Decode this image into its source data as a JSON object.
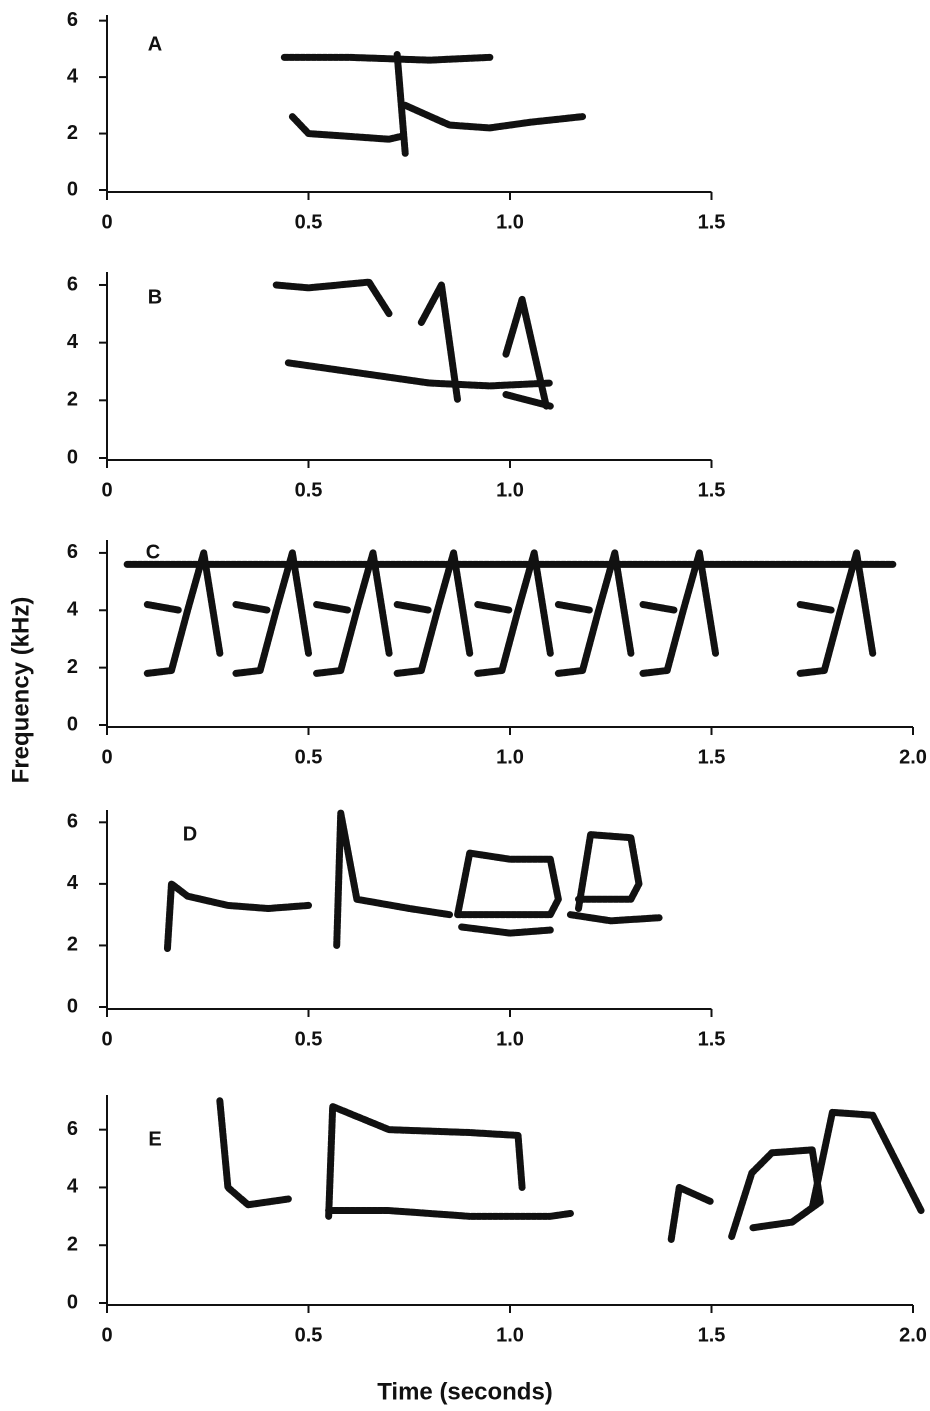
{
  "y_label": "Frequency (kHz)",
  "x_label": "Time (seconds)",
  "chart_data": [
    {
      "type": "line",
      "panel": "A",
      "color": "#111111",
      "xlim": [
        0,
        1.5
      ],
      "ylim": [
        0,
        6.2
      ],
      "xticks": [
        0,
        0.5,
        {
          "value": 1,
          "label": "1.0"
        },
        1.5
      ],
      "yticks": [
        0,
        2,
        4,
        6
      ],
      "traces": [
        {
          "x": [
            0.46,
            0.5,
            0.6,
            0.7,
            0.73
          ],
          "y": [
            2.6,
            2.0,
            1.9,
            1.8,
            1.9
          ]
        },
        {
          "x": [
            0.72,
            0.74
          ],
          "y": [
            4.8,
            1.3
          ]
        },
        {
          "x": [
            0.74,
            0.85,
            0.95,
            1.05,
            1.18
          ],
          "y": [
            3.0,
            2.3,
            2.2,
            2.4,
            2.6
          ]
        },
        {
          "x": [
            0.44,
            0.6,
            0.8,
            0.95
          ],
          "y": [
            4.7,
            4.7,
            4.6,
            4.7
          ]
        }
      ]
    },
    {
      "type": "line",
      "panel": "B",
      "color": "#111111",
      "xlim": [
        0,
        1.5
      ],
      "ylim": [
        0,
        6.45
      ],
      "xticks": [
        0,
        0.5,
        {
          "value": 1,
          "label": "1.0"
        },
        1.5
      ],
      "yticks": [
        0,
        2,
        4,
        6
      ],
      "traces": [
        {
          "x": [
            0.45,
            0.6,
            0.8,
            0.95,
            1.1
          ],
          "y": [
            3.3,
            3.0,
            2.6,
            2.5,
            2.6
          ]
        },
        {
          "x": [
            0.42,
            0.5,
            0.65,
            0.7
          ],
          "y": [
            6.0,
            5.9,
            6.1,
            5.0
          ]
        },
        {
          "x": [
            0.78,
            0.83,
            0.87
          ],
          "y": [
            4.7,
            6.0,
            2.0
          ]
        },
        {
          "x": [
            0.99,
            1.03,
            1.09
          ],
          "y": [
            3.6,
            5.5,
            1.8
          ]
        },
        {
          "x": [
            0.99,
            1.1
          ],
          "y": [
            2.2,
            1.8
          ]
        }
      ]
    },
    {
      "type": "line",
      "panel": "C",
      "color": "#111111",
      "xlim": [
        0,
        2
      ],
      "ylim": [
        0,
        6.45
      ],
      "xticks": [
        0,
        0.5,
        {
          "value": 1,
          "label": "1.0"
        },
        1.5,
        {
          "value": 2,
          "label": "2.0"
        }
      ],
      "yticks": [
        0,
        2,
        4,
        6
      ],
      "traces": [
        {
          "x": [
            0.05,
            1.95
          ],
          "y": [
            5.6,
            5.6
          ]
        },
        {
          "x": [
            0.1,
            0.16,
            0.2,
            0.24,
            0.28
          ],
          "y": [
            1.8,
            1.9,
            4.0,
            6.0,
            2.5
          ]
        },
        {
          "x": [
            0.32,
            0.38,
            0.42,
            0.46,
            0.5
          ],
          "y": [
            1.8,
            1.9,
            4.0,
            6.0,
            2.5
          ]
        },
        {
          "x": [
            0.52,
            0.58,
            0.62,
            0.66,
            0.7
          ],
          "y": [
            1.8,
            1.9,
            4.0,
            6.0,
            2.5
          ]
        },
        {
          "x": [
            0.72,
            0.78,
            0.82,
            0.86,
            0.9
          ],
          "y": [
            1.8,
            1.9,
            4.0,
            6.0,
            2.5
          ]
        },
        {
          "x": [
            0.92,
            0.98,
            1.02,
            1.06,
            1.1
          ],
          "y": [
            1.8,
            1.9,
            4.0,
            6.0,
            2.5
          ]
        },
        {
          "x": [
            1.12,
            1.18,
            1.22,
            1.26,
            1.3
          ],
          "y": [
            1.8,
            1.9,
            4.0,
            6.0,
            2.5
          ]
        },
        {
          "x": [
            1.33,
            1.39,
            1.43,
            1.47,
            1.51
          ],
          "y": [
            1.8,
            1.9,
            4.0,
            6.0,
            2.5
          ]
        },
        {
          "x": [
            1.72,
            1.78,
            1.82,
            1.86,
            1.9
          ],
          "y": [
            1.8,
            1.9,
            4.0,
            6.0,
            2.5
          ]
        },
        {
          "x": [
            0.1,
            0.18
          ],
          "y": [
            4.2,
            4.0
          ]
        },
        {
          "x": [
            0.32,
            0.4
          ],
          "y": [
            4.2,
            4.0
          ]
        },
        {
          "x": [
            0.52,
            0.6
          ],
          "y": [
            4.2,
            4.0
          ]
        },
        {
          "x": [
            0.72,
            0.8
          ],
          "y": [
            4.2,
            4.0
          ]
        },
        {
          "x": [
            0.92,
            1.0
          ],
          "y": [
            4.2,
            4.0
          ]
        },
        {
          "x": [
            1.12,
            1.2
          ],
          "y": [
            4.2,
            4.0
          ]
        },
        {
          "x": [
            1.33,
            1.41
          ],
          "y": [
            4.2,
            4.0
          ]
        },
        {
          "x": [
            1.72,
            1.8
          ],
          "y": [
            4.2,
            4.0
          ]
        }
      ]
    },
    {
      "type": "line",
      "panel": "D",
      "color": "#111111",
      "xlim": [
        0,
        1.5
      ],
      "ylim": [
        0,
        6.4
      ],
      "xticks": [
        0,
        0.5,
        {
          "value": 1,
          "label": "1.0"
        },
        1.5
      ],
      "yticks": [
        0,
        2,
        4,
        6
      ],
      "traces": [
        {
          "x": [
            0.15,
            0.16,
            0.2,
            0.3,
            0.4,
            0.5
          ],
          "y": [
            1.9,
            4.0,
            3.6,
            3.3,
            3.2,
            3.3
          ]
        },
        {
          "x": [
            0.57,
            0.58,
            0.62,
            0.75,
            0.85
          ],
          "y": [
            2.0,
            6.3,
            3.5,
            3.2,
            3.0
          ]
        },
        {
          "x": [
            0.87,
            0.9,
            1.0,
            1.1,
            1.12,
            1.1,
            0.9,
            0.87
          ],
          "y": [
            3.0,
            5.0,
            4.8,
            4.8,
            3.5,
            3.0,
            3.0,
            3.0
          ]
        },
        {
          "x": [
            0.88,
            1.0,
            1.1
          ],
          "y": [
            2.6,
            2.4,
            2.5
          ]
        },
        {
          "x": [
            1.17,
            1.2,
            1.3,
            1.32,
            1.3,
            1.17
          ],
          "y": [
            3.2,
            5.6,
            5.5,
            4.0,
            3.5,
            3.5
          ]
        },
        {
          "x": [
            1.15,
            1.25,
            1.37
          ],
          "y": [
            3.0,
            2.8,
            2.9
          ]
        }
      ]
    },
    {
      "type": "line",
      "panel": "E",
      "color": "#111111",
      "xlim": [
        0,
        2
      ],
      "ylim": [
        0,
        7.2
      ],
      "xticks": [
        0,
        0.5,
        {
          "value": 1,
          "label": "1.0"
        },
        1.5,
        {
          "value": 2,
          "label": "2.0"
        }
      ],
      "yticks": [
        0,
        2,
        4,
        6
      ],
      "traces": [
        {
          "x": [
            0.28,
            0.3,
            0.35,
            0.45
          ],
          "y": [
            7.0,
            4.0,
            3.4,
            3.6
          ]
        },
        {
          "x": [
            0.55,
            0.56,
            0.7,
            0.9,
            1.02,
            1.03
          ],
          "y": [
            3.0,
            6.8,
            6.0,
            5.9,
            5.8,
            4.0
          ]
        },
        {
          "x": [
            0.55,
            0.7,
            0.9,
            1.1,
            1.15
          ],
          "y": [
            3.2,
            3.2,
            3.0,
            3.0,
            3.1
          ]
        },
        {
          "x": [
            1.4,
            1.42,
            1.5
          ],
          "y": [
            2.2,
            4.0,
            3.5
          ]
        },
        {
          "x": [
            1.55,
            1.6,
            1.65,
            1.75,
            1.77,
            1.7,
            1.6
          ],
          "y": [
            2.3,
            4.5,
            5.2,
            5.3,
            3.5,
            2.8,
            2.6
          ]
        },
        {
          "x": [
            1.75,
            1.8,
            1.9,
            2.02
          ],
          "y": [
            3.3,
            6.6,
            6.5,
            3.2
          ]
        }
      ]
    }
  ]
}
